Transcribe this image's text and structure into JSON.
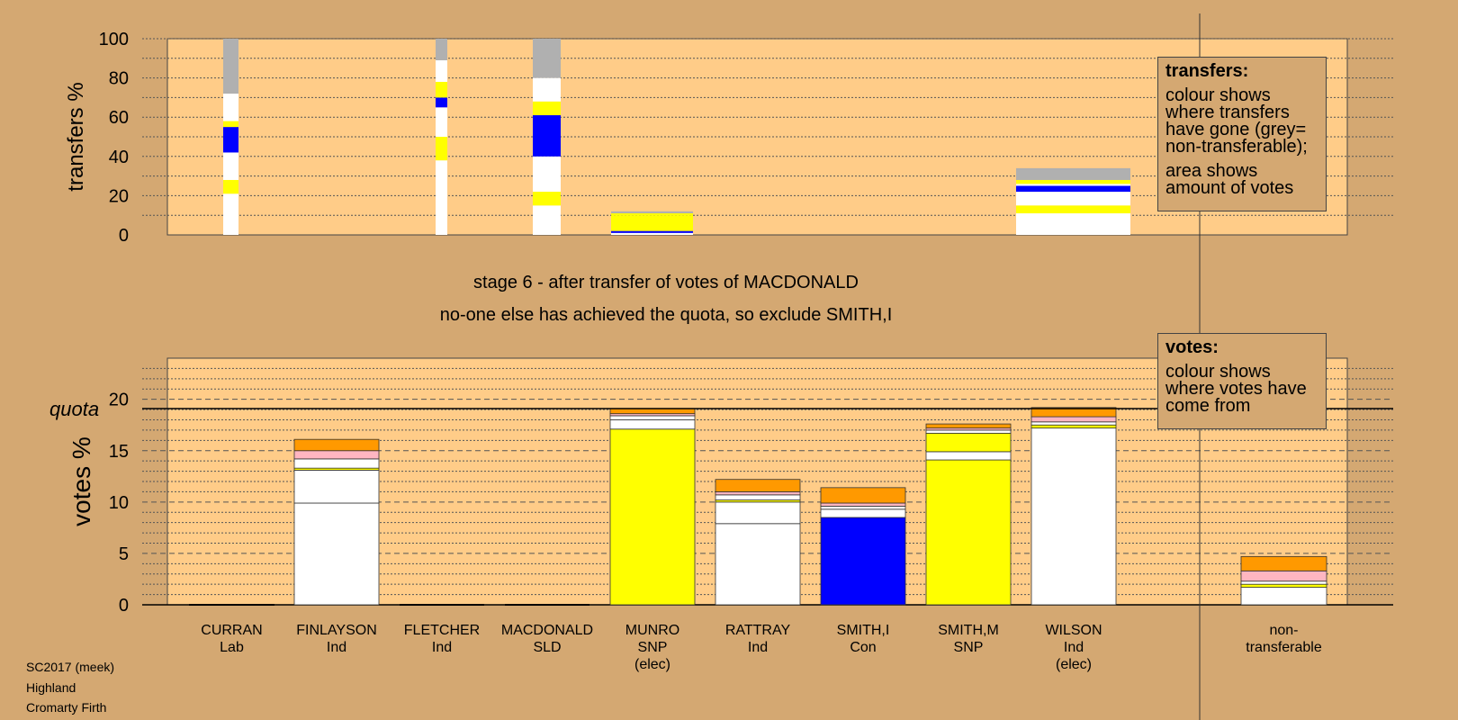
{
  "chart_data": [
    {
      "type": "bar",
      "subtype": "stacked",
      "ylabel": "transfers %",
      "ylim": [
        0,
        100
      ],
      "yticks": [
        0,
        20,
        40,
        60,
        80,
        100
      ],
      "bars": [
        {
          "category": "CURRAN",
          "segments": [
            {
              "color": "#ffffff",
              "value": 21
            },
            {
              "color": "#ffff00",
              "value": 7
            },
            {
              "color": "#ffffff",
              "value": 14
            },
            {
              "color": "#0000ff",
              "value": 13
            },
            {
              "color": "#ffff00",
              "value": 3
            },
            {
              "color": "#ffffff",
              "value": 14
            },
            {
              "color": "#b0b0b0",
              "value": 28
            }
          ]
        },
        {
          "category": "FLETCHER",
          "segments": [
            {
              "color": "#ffffff",
              "value": 38
            },
            {
              "color": "#ffff00",
              "value": 12
            },
            {
              "color": "#ffffff",
              "value": 15
            },
            {
              "color": "#0000ff",
              "value": 5
            },
            {
              "color": "#ffff00",
              "value": 8
            },
            {
              "color": "#ffffff",
              "value": 11
            },
            {
              "color": "#b0b0b0",
              "value": 11
            }
          ]
        },
        {
          "category": "MACDONALD",
          "segments": [
            {
              "color": "#ffffff",
              "value": 15
            },
            {
              "color": "#ffff00",
              "value": 7
            },
            {
              "color": "#ffffff",
              "value": 18
            },
            {
              "color": "#0000ff",
              "value": 21
            },
            {
              "color": "#ffff00",
              "value": 7
            },
            {
              "color": "#ffffff",
              "value": 12
            },
            {
              "color": "#b0b0b0",
              "value": 20
            }
          ]
        },
        {
          "category": "SMITH,I",
          "segments": [
            {
              "color": "#ffffff",
              "value": 1
            },
            {
              "color": "#0000ff",
              "value": 1
            },
            {
              "color": "#ffff00",
              "value": 8
            },
            {
              "color": "#ffff00",
              "value": 1
            },
            {
              "color": "#b0b0b0",
              "value": 1
            }
          ]
        },
        {
          "category": "non-transferable",
          "segments": [
            {
              "color": "#ffffff",
              "value": 11
            },
            {
              "color": "#ffff00",
              "value": 4
            },
            {
              "color": "#ffffff",
              "value": 7
            },
            {
              "color": "#0000ff",
              "value": 3
            },
            {
              "color": "#ffffff",
              "value": 1
            },
            {
              "color": "#ffff00",
              "value": 2
            },
            {
              "color": "#b0b0b0",
              "value": 6
            }
          ]
        }
      ]
    },
    {
      "type": "bar",
      "subtype": "stacked",
      "ylabel": "votes %",
      "ylim": [
        0,
        24
      ],
      "yticks": [
        0,
        5,
        10,
        15,
        20
      ],
      "quota": 19.1,
      "quota_label": "quota",
      "categories": [
        "CURRAN",
        "FINLAYSON",
        "FLETCHER",
        "MACDONALD",
        "MUNRO",
        "RATTRAY",
        "SMITH,I",
        "SMITH,M",
        "WILSON",
        "non-transferable"
      ],
      "subcategories": [
        "Lab",
        "Ind",
        "Ind",
        "SLD",
        "SNP",
        "Ind",
        "Con",
        "SNP",
        "Ind",
        "transferable"
      ],
      "notes": [
        "",
        "",
        "",
        "",
        "(elec)",
        "",
        "",
        "",
        "(elec)",
        ""
      ],
      "bars": [
        {
          "category": "CURRAN",
          "segments": []
        },
        {
          "category": "FINLAYSON",
          "segments": [
            {
              "color": "#ffffff",
              "value": 9.9
            },
            {
              "color": "#ffffff",
              "value": 3.2
            },
            {
              "color": "#ffff00",
              "value": 0.2
            },
            {
              "color": "#ffffff",
              "value": 0.9
            },
            {
              "color": "#ffb6c1",
              "value": 0.8
            },
            {
              "color": "#ff9900",
              "value": 1.1
            }
          ]
        },
        {
          "category": "FLETCHER",
          "segments": []
        },
        {
          "category": "MACDONALD",
          "segments": []
        },
        {
          "category": "MUNRO",
          "segments": [
            {
              "color": "#ffff00",
              "value": 17.1
            },
            {
              "color": "#ffffff",
              "value": 0.9
            },
            {
              "color": "#ffffff",
              "value": 0.4
            },
            {
              "color": "#ffb6c1",
              "value": 0.2
            },
            {
              "color": "#ff9900",
              "value": 0.5
            }
          ]
        },
        {
          "category": "RATTRAY",
          "segments": [
            {
              "color": "#ffffff",
              "value": 7.9
            },
            {
              "color": "#ffffff",
              "value": 2.1
            },
            {
              "color": "#ffff00",
              "value": 0.2
            },
            {
              "color": "#ffffff",
              "value": 0.5
            },
            {
              "color": "#ffb6c1",
              "value": 0.3
            },
            {
              "color": "#ff9900",
              "value": 1.2
            }
          ]
        },
        {
          "category": "SMITH,I",
          "segments": [
            {
              "color": "#0000ff",
              "value": 8.5
            },
            {
              "color": "#ffffff",
              "value": 0.8
            },
            {
              "color": "#ffffff",
              "value": 0.3
            },
            {
              "color": "#ffb6c1",
              "value": 0.3
            },
            {
              "color": "#ff9900",
              "value": 1.5
            }
          ]
        },
        {
          "category": "SMITH,M",
          "segments": [
            {
              "color": "#ffff00",
              "value": 14.1
            },
            {
              "color": "#ffffff",
              "value": 0.8
            },
            {
              "color": "#ffff00",
              "value": 1.8
            },
            {
              "color": "#ffffff",
              "value": 0.3
            },
            {
              "color": "#ffb6c1",
              "value": 0.2
            },
            {
              "color": "#ff9900",
              "value": 0.4
            }
          ]
        },
        {
          "category": "WILSON",
          "segments": [
            {
              "color": "#ffffff",
              "value": 17.2
            },
            {
              "color": "#ffff00",
              "value": 0.3
            },
            {
              "color": "#ffffff",
              "value": 0.3
            },
            {
              "color": "#ffb6c1",
              "value": 0.5
            },
            {
              "color": "#ff9900",
              "value": 0.9
            }
          ]
        },
        {
          "category": "non-transferable",
          "segments": [
            {
              "color": "#ffffff",
              "value": 1.7
            },
            {
              "color": "#ffff00",
              "value": 0.3
            },
            {
              "color": "#ffffff",
              "value": 0.3
            },
            {
              "color": "#ffb6c1",
              "value": 1.0
            },
            {
              "color": "#ff9900",
              "value": 1.4
            }
          ]
        }
      ]
    }
  ],
  "stage": {
    "line1": "stage 6 - after transfer of votes of MACDONALD",
    "line2": "no-one else has achieved the quota, so exclude SMITH,I"
  },
  "legend_transfers": {
    "title": "transfers:",
    "para1": "colour shows where transfers have gone (grey= non-transferable);",
    "para2": "area shows amount of votes"
  },
  "legend_votes": {
    "title": "votes:",
    "para1": "colour shows where votes have come from"
  },
  "info": {
    "line1": "SC2017 (meek)",
    "line2": "Highland",
    "line3": "Cromarty Firth"
  },
  "colors": {
    "background": "#d4a872",
    "plot_area": "#ffcc88",
    "white": "#ffffff",
    "yellow": "#ffff00",
    "blue": "#0000ff",
    "pink": "#ffb6c1",
    "orange": "#ff9900",
    "grey": "#b0b0b0"
  }
}
